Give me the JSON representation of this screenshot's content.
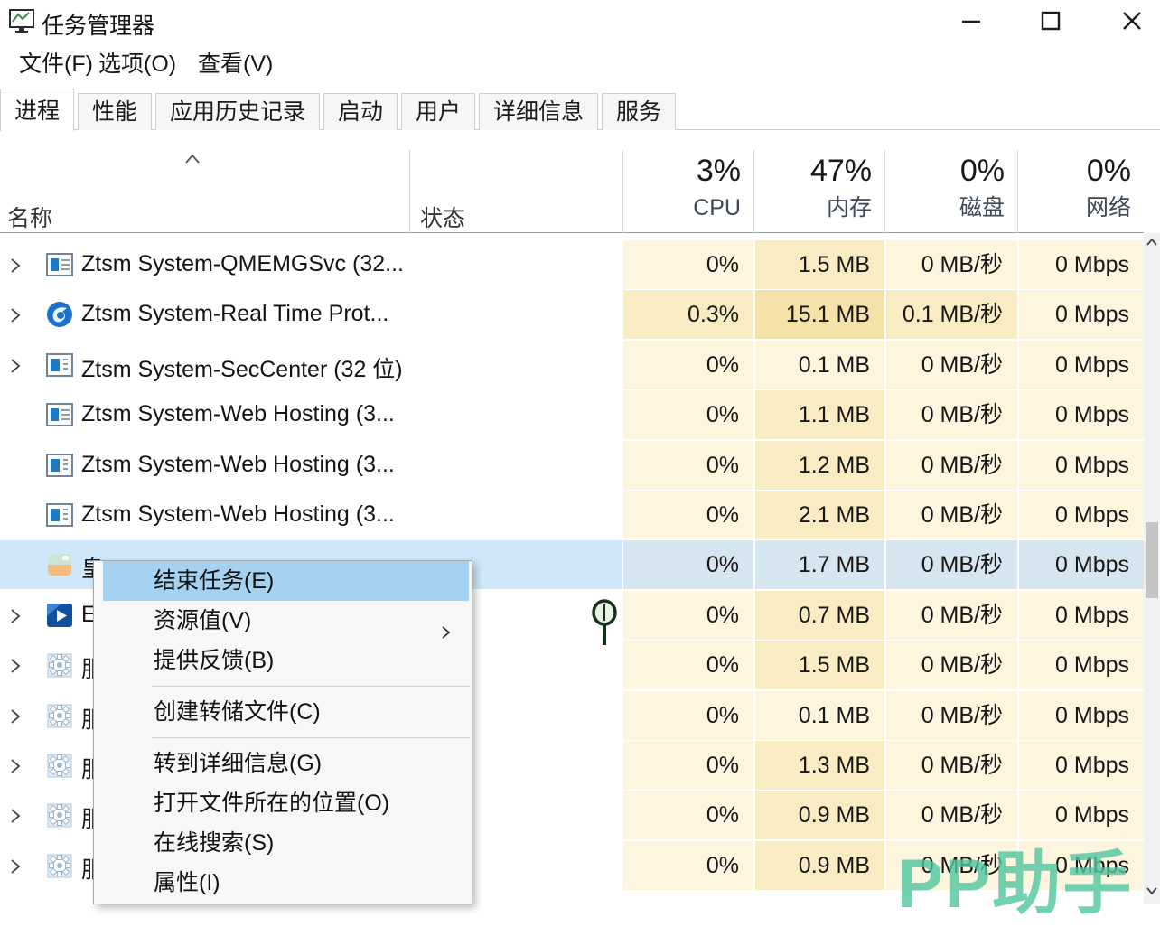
{
  "window": {
    "title": "任务管理器",
    "controls": {
      "minimize": "minimize",
      "maximize": "maximize",
      "close": "close"
    }
  },
  "menubar": {
    "items": [
      "文件(F)",
      "选项(O)",
      "查看(V)"
    ]
  },
  "tabs": {
    "items": [
      {
        "label": "进程",
        "selected": true
      },
      {
        "label": "性能",
        "selected": false
      },
      {
        "label": "应用历史记录",
        "selected": false
      },
      {
        "label": "启动",
        "selected": false
      },
      {
        "label": "用户",
        "selected": false
      },
      {
        "label": "详细信息",
        "selected": false
      },
      {
        "label": "服务",
        "selected": false
      }
    ]
  },
  "table": {
    "columns": {
      "name": "名称",
      "status": "状态",
      "cpu": {
        "pct": "3%",
        "label": "CPU"
      },
      "memory": {
        "pct": "47%",
        "label": "内存"
      },
      "disk": {
        "pct": "0%",
        "label": "磁盘"
      },
      "network": {
        "pct": "0%",
        "label": "网络"
      }
    },
    "rows": [
      {
        "chevron": true,
        "icon": "window-lines",
        "name": "Ztsm System-QMEMGSvc (32...",
        "selected": false,
        "cpu": "0%",
        "memory": "1.5 MB",
        "disk": "0 MB/秒",
        "network": "0 Mbps",
        "heat": [
          0,
          1,
          0,
          0
        ]
      },
      {
        "chevron": true,
        "icon": "shield-blue",
        "name": "Ztsm System-Real Time Prot...",
        "selected": false,
        "cpu": "0.3%",
        "memory": "15.1 MB",
        "disk": "0.1 MB/秒",
        "network": "0 Mbps",
        "heat": [
          1,
          2,
          1,
          0
        ]
      },
      {
        "chevron": true,
        "icon": "window-bar",
        "name": "Ztsm System-SecCenter (32 位)",
        "selected": false,
        "cpu": "0%",
        "memory": "0.1 MB",
        "disk": "0 MB/秒",
        "network": "0 Mbps",
        "heat": [
          0,
          0,
          0,
          0
        ]
      },
      {
        "chevron": false,
        "icon": "window-lines",
        "name": "Ztsm System-Web Hosting (3...",
        "selected": false,
        "cpu": "0%",
        "memory": "1.1 MB",
        "disk": "0 MB/秒",
        "network": "0 Mbps",
        "heat": [
          0,
          1,
          0,
          0
        ]
      },
      {
        "chevron": false,
        "icon": "window-bar",
        "name": "Ztsm System-Web Hosting (3...",
        "selected": false,
        "cpu": "0%",
        "memory": "1.2 MB",
        "disk": "0 MB/秒",
        "network": "0 Mbps",
        "heat": [
          0,
          1,
          0,
          0
        ]
      },
      {
        "chevron": false,
        "icon": "window-bar",
        "name": "Ztsm System-Web Hosting (3...",
        "selected": false,
        "cpu": "0%",
        "memory": "2.1 MB",
        "disk": "0 MB/秒",
        "network": "0 Mbps",
        "heat": [
          0,
          1,
          0,
          0
        ]
      },
      {
        "chevron": false,
        "icon": "pastel-app",
        "name": "皇",
        "selected": true,
        "cpu": "0%",
        "memory": "1.7 MB",
        "disk": "0 MB/秒",
        "network": "0 Mbps",
        "heat": [
          0,
          0,
          0,
          0
        ]
      },
      {
        "chevron": true,
        "icon": "media-blue",
        "name": "E",
        "selected": false,
        "cpu": "0%",
        "memory": "0.7 MB",
        "disk": "0 MB/秒",
        "network": "0 Mbps",
        "heat": [
          0,
          1,
          0,
          0
        ]
      },
      {
        "chevron": true,
        "icon": "gear",
        "name": "服",
        "selected": false,
        "cpu": "0%",
        "memory": "1.5 MB",
        "disk": "0 MB/秒",
        "network": "0 Mbps",
        "heat": [
          0,
          1,
          0,
          0
        ]
      },
      {
        "chevron": true,
        "icon": "gear",
        "name": "服",
        "selected": false,
        "cpu": "0%",
        "memory": "0.1 MB",
        "disk": "0 MB/秒",
        "network": "0 Mbps",
        "heat": [
          0,
          0,
          0,
          0
        ]
      },
      {
        "chevron": true,
        "icon": "gear",
        "name": "服",
        "selected": false,
        "cpu": "0%",
        "memory": "1.3 MB",
        "disk": "0 MB/秒",
        "network": "0 Mbps",
        "heat": [
          0,
          1,
          0,
          0
        ]
      },
      {
        "chevron": true,
        "icon": "gear",
        "name": "服",
        "selected": false,
        "cpu": "0%",
        "memory": "0.9 MB",
        "disk": "0 MB/秒",
        "network": "0 Mbps",
        "heat": [
          0,
          1,
          0,
          0
        ]
      },
      {
        "chevron": true,
        "icon": "gear",
        "name": "服",
        "selected": false,
        "cpu": "0%",
        "memory": "0.9 MB",
        "disk": "0 MB/秒",
        "network": "0 Mbps",
        "heat": [
          0,
          1,
          0,
          0
        ]
      }
    ]
  },
  "context_menu": {
    "items": [
      {
        "type": "item",
        "label": "结束任务(E)",
        "highlighted": true,
        "submenu": false
      },
      {
        "type": "item",
        "label": "资源值(V)",
        "highlighted": false,
        "submenu": true
      },
      {
        "type": "item",
        "label": "提供反馈(B)",
        "highlighted": false,
        "submenu": false
      },
      {
        "type": "separator"
      },
      {
        "type": "item",
        "label": "创建转储文件(C)",
        "highlighted": false,
        "submenu": false
      },
      {
        "type": "separator"
      },
      {
        "type": "item",
        "label": "转到详细信息(G)",
        "highlighted": false,
        "submenu": false
      },
      {
        "type": "item",
        "label": "打开文件所在的位置(O)",
        "highlighted": false,
        "submenu": false
      },
      {
        "type": "item",
        "label": "在线搜索(S)",
        "highlighted": false,
        "submenu": false
      },
      {
        "type": "item",
        "label": "属性(I)",
        "highlighted": false,
        "submenu": false
      }
    ]
  },
  "watermark": {
    "text": "PP助手",
    "color": "#50c6a1"
  },
  "colors": {
    "heat": [
      "#fdf5dd",
      "#f9ecc2",
      "#f5e2a9"
    ],
    "selected_row": "#cfe7f8",
    "selected_cell": "#d6e6f0",
    "menu_highlight": "#a5d2f0"
  }
}
